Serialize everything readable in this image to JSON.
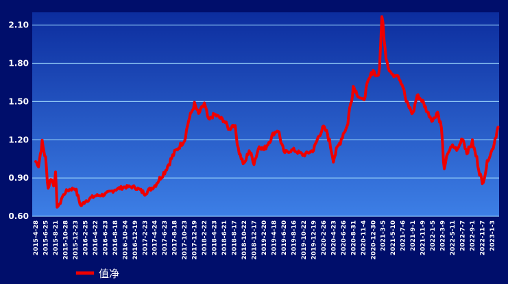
{
  "chart_data": {
    "type": "line",
    "title": "",
    "xlabel": "",
    "ylabel": "",
    "ylim": [
      0.6,
      2.2
    ],
    "yticks": [
      "0.60",
      "0.90",
      "1.20",
      "1.50",
      "1.80",
      "2.10"
    ],
    "grid": true,
    "legend_position": "bottom-left",
    "colors": {
      "background": "#000e6b",
      "plot_top": "#0c2d9e",
      "plot_bottom": "#3d7fe6",
      "grid": "#8fc8f5",
      "line": "#ee0000"
    },
    "x_tick_labels": [
      "2015-4-28",
      "2015-6-25",
      "2015-8-21",
      "2015-10-28",
      "2015-12-23",
      "2016-2-25",
      "2016-4-22",
      "2016-6-23",
      "2016-8-18",
      "2016-10-24",
      "2016-12-19",
      "2017-2-23",
      "2017-4-24",
      "2017-6-23",
      "2017-8-18",
      "2017-10-23",
      "2017-12-19",
      "2018-2-22",
      "2018-4-23",
      "2018-6-21",
      "2018-8-17",
      "2018-10-22",
      "2018-12-17",
      "2019-2-20",
      "2019-4-18",
      "2019-6-20",
      "2019-8-16",
      "2019-10-22",
      "2019-12-19",
      "2020-2-26",
      "2020-4-23",
      "2020-6-26",
      "2020-8-31",
      "2020-11-4",
      "2020-12-30",
      "2021-3-5",
      "2021-5-10",
      "2021-7-6",
      "2021-9-1",
      "2021-11-9",
      "2022-1-5",
      "2022-3-9",
      "2022-5-11",
      "2022-7-7",
      "2022-9-1",
      "2022-11-7",
      "2023-1-3"
    ],
    "series": [
      {
        "name": "值净",
        "x": [
          "2015-4-28",
          "2015-5-15",
          "2015-6-5",
          "2015-6-25",
          "2015-7-10",
          "2015-7-25",
          "2015-8-10",
          "2015-8-21",
          "2015-9-1",
          "2015-9-15",
          "2015-10-1",
          "2015-10-28",
          "2015-11-20",
          "2015-12-23",
          "2016-1-10",
          "2016-1-28",
          "2016-2-25",
          "2016-4-22",
          "2016-6-23",
          "2016-8-18",
          "2016-10-24",
          "2016-12-19",
          "2017-2-23",
          "2017-4-24",
          "2017-6-23",
          "2017-8-18",
          "2017-10-23",
          "2017-11-15",
          "2017-12-19",
          "2018-1-15",
          "2018-2-5",
          "2018-2-22",
          "2018-3-20",
          "2018-4-23",
          "2018-6-21",
          "2018-7-20",
          "2018-8-17",
          "2018-9-20",
          "2018-10-22",
          "2018-11-20",
          "2018-12-17",
          "2019-1-20",
          "2019-2-20",
          "2019-4-18",
          "2019-5-15",
          "2019-6-20",
          "2019-8-16",
          "2019-10-22",
          "2019-12-19",
          "2020-1-20",
          "2020-2-26",
          "2020-3-20",
          "2020-4-23",
          "2020-6-26",
          "2020-7-20",
          "2020-8-31",
          "2020-10-1",
          "2020-11-4",
          "2020-12-1",
          "2020-12-30",
          "2021-1-20",
          "2021-2-10",
          "2021-2-25",
          "2021-3-5",
          "2021-3-25",
          "2021-4-15",
          "2021-5-10",
          "2021-6-5",
          "2021-7-6",
          "2021-7-25",
          "2021-9-1",
          "2021-10-1",
          "2021-11-9",
          "2021-12-5",
          "2022-1-5",
          "2022-2-5",
          "2022-3-1",
          "2022-3-9",
          "2022-3-20",
          "2022-4-10",
          "2022-5-11",
          "2022-6-10",
          "2022-7-7",
          "2022-8-1",
          "2022-9-1",
          "2022-10-1",
          "2022-11-7",
          "2022-11-25",
          "2022-12-10",
          "2023-1-3",
          "2023-2-5"
        ],
        "values": [
          1.03,
          1.0,
          1.18,
          1.05,
          0.82,
          0.9,
          0.85,
          0.92,
          0.68,
          0.68,
          0.74,
          0.79,
          0.81,
          0.82,
          0.75,
          0.68,
          0.72,
          0.76,
          0.77,
          0.81,
          0.83,
          0.83,
          0.78,
          0.84,
          0.95,
          1.1,
          1.2,
          1.35,
          1.48,
          1.4,
          1.45,
          1.48,
          1.35,
          1.4,
          1.35,
          1.28,
          1.33,
          1.1,
          1.0,
          1.12,
          1.02,
          1.15,
          1.12,
          1.25,
          1.28,
          1.1,
          1.12,
          1.08,
          1.12,
          1.22,
          1.3,
          1.25,
          1.05,
          1.25,
          1.3,
          1.62,
          1.55,
          1.5,
          1.65,
          1.75,
          1.7,
          1.72,
          2.18,
          2.1,
          1.85,
          1.75,
          1.7,
          1.72,
          1.62,
          1.5,
          1.4,
          1.55,
          1.5,
          1.42,
          1.35,
          1.42,
          1.3,
          1.15,
          0.95,
          1.1,
          1.15,
          1.12,
          1.22,
          1.1,
          1.18,
          1.05,
          0.85,
          0.95,
          1.05,
          1.12,
          1.3
        ]
      }
    ]
  }
}
